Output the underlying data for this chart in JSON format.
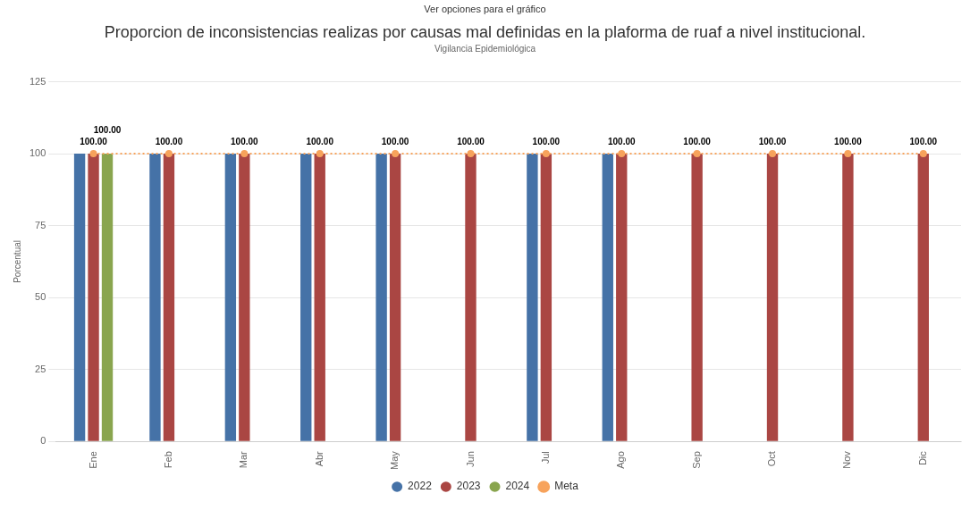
{
  "chart_data": {
    "type": "bar",
    "title": "Proporcion de inconsistencias realizas por causas mal definidas en la plaforma de ruaf a nivel institucional.",
    "subtitle": "Vigilancia Epidemiológica",
    "annotations": [
      "Ver opciones para el gráfico"
    ],
    "ylabel": "Porcentual",
    "categories": [
      "Ene",
      "Feb",
      "Mar",
      "Abr",
      "May",
      "Jun",
      "Jul",
      "Ago",
      "Sep",
      "Oct",
      "Nov",
      "Dic"
    ],
    "series": [
      {
        "name": "2022",
        "color": "#4572a7",
        "values": [
          100,
          100,
          100,
          100,
          100,
          null,
          100,
          100,
          null,
          null,
          null,
          null
        ]
      },
      {
        "name": "2023",
        "color": "#aa4643",
        "values": [
          100,
          100,
          100,
          100,
          100,
          100,
          100,
          100,
          100,
          100,
          100,
          100
        ],
        "value_labels": [
          "100.00",
          "100.00",
          "100.00",
          "100.00",
          "100.00",
          "100.00",
          "100.00",
          "100.00",
          "100.00",
          "100.00",
          "100.00",
          "100.00"
        ]
      },
      {
        "name": "2024",
        "color": "#89a54e",
        "values": [
          100,
          null,
          null,
          null,
          null,
          null,
          null,
          null,
          null,
          null,
          null,
          null
        ],
        "value_labels": [
          "100.00",
          null,
          null,
          null,
          null,
          null,
          null,
          null,
          null,
          null,
          null,
          null
        ]
      },
      {
        "name": "Meta",
        "type": "line",
        "color": "#f7a35c",
        "line_style": "dotted",
        "marker": "circle",
        "values": [
          100,
          100,
          100,
          100,
          100,
          100,
          100,
          100,
          100,
          100,
          100,
          100
        ]
      }
    ],
    "ylim": [
      0,
      125
    ],
    "yticks": [
      0,
      25,
      50,
      75,
      100,
      125
    ],
    "grid": "y",
    "legend": "bottom"
  }
}
